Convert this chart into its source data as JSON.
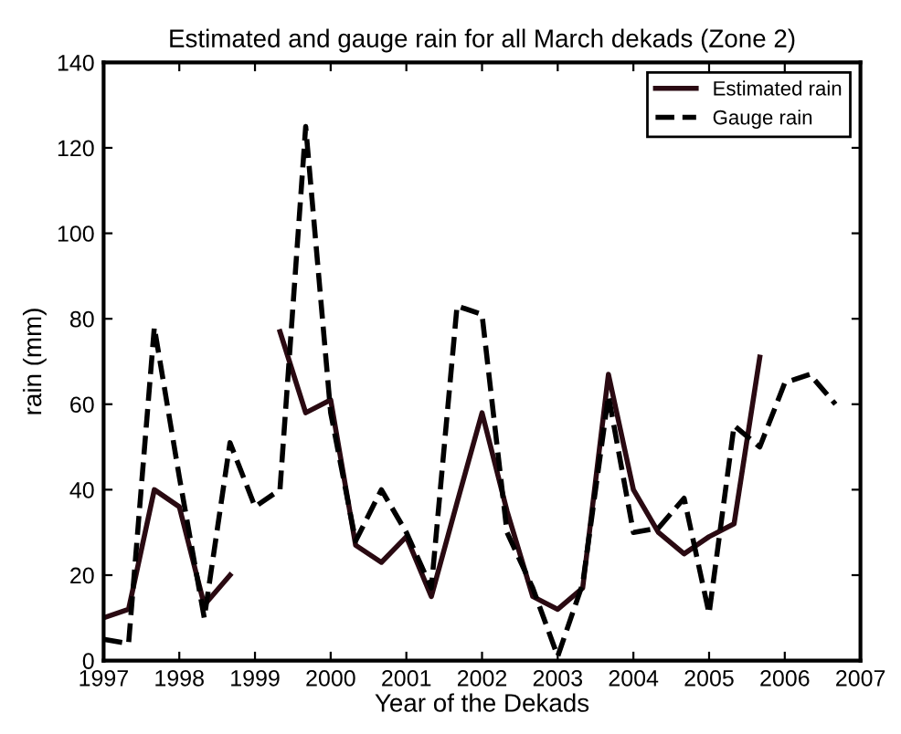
{
  "chart_data": {
    "type": "line",
    "title": "Estimated and gauge rain for all March dekads (Zone 2)",
    "xlabel": "Year of the Dekads",
    "ylabel": "rain (mm)",
    "x": [
      1997,
      1997.33,
      1997.67,
      1998,
      1998.33,
      1998.67,
      1999,
      1999.33,
      1999.67,
      2000,
      2000.33,
      2000.67,
      2001,
      2001.33,
      2001.67,
      2002,
      2002.33,
      2002.67,
      2003,
      2003.33,
      2003.67,
      2004,
      2004.33,
      2004.67,
      2005,
      2005.33,
      2005.67,
      2006,
      2006.33,
      2006.67
    ],
    "series": [
      {
        "name": "Estimated rain",
        "color": "#2a0a12",
        "line_style": "solid",
        "values": [
          10,
          12,
          40,
          36,
          13,
          20,
          null,
          77,
          58,
          61,
          27,
          23,
          29,
          15,
          37,
          58,
          35,
          15,
          12,
          17,
          67,
          40,
          30,
          25,
          29,
          32,
          71,
          null,
          null,
          null
        ]
      },
      {
        "name": "Gauge rain",
        "color": "#000000",
        "line_style": "dashed",
        "values": [
          5,
          4,
          78,
          43,
          10,
          51,
          36,
          40,
          125,
          58,
          28,
          40,
          30,
          17,
          83,
          81,
          30,
          17,
          1,
          18,
          62,
          30,
          31,
          38,
          11,
          55,
          50,
          65,
          67,
          60
        ]
      }
    ],
    "xlim": [
      1997,
      2007
    ],
    "xticks": [
      1997,
      1998,
      1999,
      2000,
      2001,
      2002,
      2003,
      2004,
      2005,
      2006,
      2007
    ],
    "ylim": [
      0,
      140
    ],
    "yticks": [
      0,
      20,
      40,
      60,
      80,
      100,
      120,
      140
    ],
    "grid": false,
    "legend": "top right",
    "marker": "none"
  }
}
